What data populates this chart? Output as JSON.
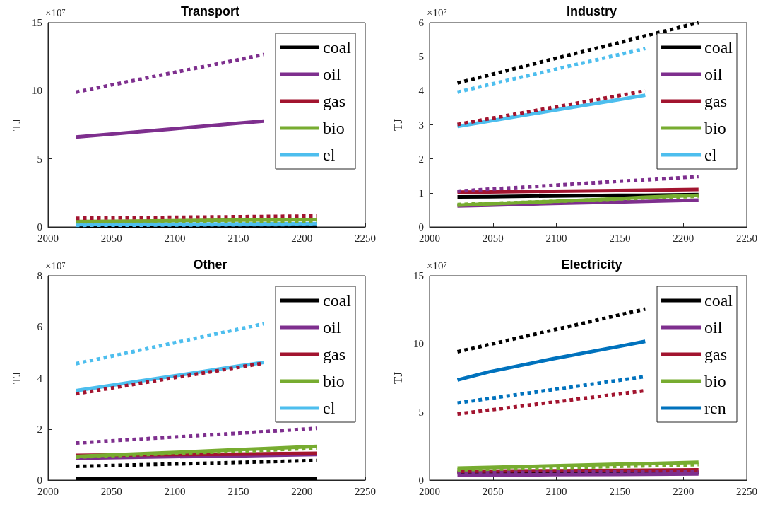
{
  "chart_data": [
    {
      "type": "line",
      "title": "Transport",
      "ylabel": "TJ",
      "annotations": [
        "×10⁷"
      ],
      "x": [
        2022,
        2047,
        2097,
        2148,
        2170,
        2212
      ],
      "xlim": [
        2000,
        2250
      ],
      "xticks": [
        2000,
        2050,
        2100,
        2150,
        2200,
        2250
      ],
      "ylim": [
        0,
        15
      ],
      "yticks": [
        0,
        5,
        10,
        15
      ],
      "legend": "top right",
      "grid": false,
      "marker": "none",
      "series": [
        {
          "name": "coal",
          "color": "#000000",
          "line_style": "solid",
          "values": [
            0.02,
            0.02,
            0.02,
            0.02,
            0.02,
            0.02
          ]
        },
        {
          "name": "oil",
          "color": "#7e2f8e",
          "line_style": "solid",
          "values": [
            6.6,
            6.8,
            7.19,
            7.6,
            7.77,
            null
          ]
        },
        {
          "name": "gas",
          "color": "#a2142f",
          "line_style": "solid",
          "values": [
            null,
            null,
            null,
            null,
            null,
            null
          ]
        },
        {
          "name": "bio",
          "color": "#77ac30",
          "line_style": "solid",
          "values": [
            0.4,
            0.42,
            0.46,
            0.5,
            0.52,
            0.55
          ]
        },
        {
          "name": "el",
          "color": "#4dbeee",
          "line_style": "solid",
          "values": [
            0.17,
            0.18,
            0.2,
            0.22,
            0.23,
            0.25
          ]
        },
        {
          "color": "#7e2f8e",
          "line_style": "dotted",
          "values": [
            9.9,
            10.37,
            11.3,
            12.24,
            12.66,
            null
          ]
        },
        {
          "color": "#a2142f",
          "line_style": "dotted",
          "values": [
            0.64,
            0.66,
            0.71,
            0.75,
            0.77,
            0.81
          ]
        },
        {
          "color": "#77ac30",
          "line_style": "dotted",
          "values": [
            0.35,
            0.36,
            0.39,
            0.42,
            0.43,
            0.45
          ]
        },
        {
          "color": "#4dbeee",
          "line_style": "dotted",
          "values": [
            0.12,
            0.13,
            0.14,
            0.16,
            0.17,
            0.18
          ]
        }
      ]
    },
    {
      "type": "line",
      "title": "Industry",
      "ylabel": "TJ",
      "annotations": [
        "×10⁷"
      ],
      "x": [
        2022,
        2047,
        2097,
        2148,
        2170,
        2212
      ],
      "xlim": [
        2000,
        2250
      ],
      "xticks": [
        2000,
        2050,
        2100,
        2150,
        2200,
        2250
      ],
      "ylim": [
        0,
        6
      ],
      "yticks": [
        0,
        1,
        2,
        3,
        4,
        5,
        6
      ],
      "legend": "top right",
      "grid": false,
      "marker": "none",
      "series": [
        {
          "name": "coal",
          "color": "#000000",
          "line_style": "solid",
          "values": [
            0.88,
            0.89,
            0.91,
            0.93,
            0.93,
            0.95
          ]
        },
        {
          "name": "oil",
          "color": "#7e2f8e",
          "line_style": "solid",
          "values": [
            0.62,
            0.64,
            0.69,
            0.73,
            0.75,
            0.79
          ]
        },
        {
          "name": "gas",
          "color": "#a2142f",
          "line_style": "solid",
          "values": [
            1.02,
            1.03,
            1.05,
            1.07,
            1.08,
            1.1
          ]
        },
        {
          "name": "bio",
          "color": "#77ac30",
          "line_style": "solid",
          "values": [
            0.64,
            0.68,
            0.75,
            0.83,
            0.87,
            0.93
          ]
        },
        {
          "name": "el",
          "color": "#4dbeee",
          "line_style": "solid",
          "values": [
            2.95,
            3.11,
            3.42,
            3.73,
            3.87,
            null
          ]
        },
        {
          "color": "#000000",
          "line_style": "dotted",
          "values": [
            4.23,
            4.46,
            4.93,
            5.4,
            5.61,
            6.0
          ]
        },
        {
          "color": "#7e2f8e",
          "line_style": "dotted",
          "values": [
            1.05,
            1.11,
            1.22,
            1.34,
            1.38,
            1.48
          ]
        },
        {
          "color": "#a2142f",
          "line_style": "dotted",
          "values": [
            3.01,
            3.18,
            3.51,
            3.85,
            4.0,
            null
          ]
        },
        {
          "color": "#77ac30",
          "line_style": "dotted",
          "values": [
            0.66,
            0.69,
            0.75,
            0.82,
            0.85,
            0.9
          ]
        },
        {
          "color": "#4dbeee",
          "line_style": "dotted",
          "values": [
            3.96,
            4.18,
            4.61,
            5.05,
            5.24,
            null
          ]
        }
      ]
    },
    {
      "type": "line",
      "title": "Other",
      "ylabel": "TJ",
      "annotations": [
        "×10⁷"
      ],
      "x": [
        2022,
        2047,
        2097,
        2148,
        2170,
        2212
      ],
      "xlim": [
        2000,
        2250
      ],
      "xticks": [
        2000,
        2050,
        2100,
        2150,
        2200,
        2250
      ],
      "ylim": [
        0,
        8
      ],
      "yticks": [
        0,
        2,
        4,
        6,
        8
      ],
      "legend": "top right",
      "grid": false,
      "marker": "none",
      "series": [
        {
          "name": "coal",
          "color": "#000000",
          "line_style": "solid",
          "values": [
            0.07,
            0.07,
            0.07,
            0.07,
            0.07,
            0.07
          ]
        },
        {
          "name": "oil",
          "color": "#7e2f8e",
          "line_style": "solid",
          "values": [
            0.86,
            0.88,
            0.92,
            0.95,
            0.97,
            1.0
          ]
        },
        {
          "name": "gas",
          "color": "#a2142f",
          "line_style": "solid",
          "values": [
            0.97,
            0.98,
            1.0,
            1.02,
            1.03,
            1.05
          ]
        },
        {
          "name": "bio",
          "color": "#77ac30",
          "line_style": "solid",
          "values": [
            0.93,
            0.98,
            1.08,
            1.19,
            1.23,
            1.32
          ]
        },
        {
          "name": "el",
          "color": "#4dbeee",
          "line_style": "solid",
          "values": [
            3.5,
            3.69,
            4.06,
            4.45,
            4.61,
            null
          ]
        },
        {
          "color": "#000000",
          "line_style": "dotted",
          "values": [
            0.54,
            0.57,
            0.63,
            0.69,
            0.72,
            0.77
          ]
        },
        {
          "color": "#7e2f8e",
          "line_style": "dotted",
          "values": [
            1.45,
            1.53,
            1.68,
            1.83,
            1.9,
            2.03
          ]
        },
        {
          "color": "#a2142f",
          "line_style": "dotted",
          "values": [
            3.38,
            3.58,
            3.99,
            4.4,
            4.58,
            null
          ]
        },
        {
          "color": "#77ac30",
          "line_style": "dotted",
          "values": [
            0.9,
            0.95,
            1.04,
            1.13,
            1.17,
            1.25
          ]
        },
        {
          "color": "#4dbeee",
          "line_style": "dotted",
          "values": [
            4.56,
            4.82,
            5.35,
            5.89,
            6.12,
            null
          ]
        }
      ]
    },
    {
      "type": "line",
      "title": "Electricity",
      "ylabel": "TJ",
      "annotations": [
        "×10⁷"
      ],
      "x": [
        2022,
        2047,
        2097,
        2148,
        2170,
        2212
      ],
      "xlim": [
        2000,
        2250
      ],
      "xticks": [
        2000,
        2050,
        2100,
        2150,
        2200,
        2250
      ],
      "ylim": [
        0,
        15
      ],
      "yticks": [
        0,
        5,
        10,
        15
      ],
      "legend": "top right",
      "grid": false,
      "marker": "none",
      "series": [
        {
          "name": "coal",
          "color": "#000000",
          "line_style": "solid",
          "values": [
            0.53,
            0.53,
            0.53,
            0.53,
            0.53,
            0.53
          ]
        },
        {
          "name": "oil",
          "color": "#7e2f8e",
          "line_style": "solid",
          "values": [
            0.36,
            0.37,
            0.4,
            0.42,
            0.43,
            0.45
          ]
        },
        {
          "name": "gas",
          "color": "#a2142f",
          "line_style": "solid",
          "values": [
            0.65,
            0.66,
            0.69,
            0.72,
            0.73,
            0.75
          ]
        },
        {
          "name": "bio",
          "color": "#77ac30",
          "line_style": "solid",
          "values": [
            0.88,
            0.94,
            1.05,
            1.17,
            1.21,
            1.31
          ]
        },
        {
          "name": "ren",
          "color": "#0072bd",
          "line_style": "solid",
          "values": [
            7.35,
            7.95,
            8.9,
            9.79,
            10.19,
            null
          ]
        },
        {
          "color": "#000000",
          "line_style": "dotted",
          "values": [
            9.42,
            9.95,
            11.01,
            12.09,
            12.56,
            null
          ]
        },
        {
          "color": "#7e2f8e",
          "line_style": "dotted",
          "values": [
            0.55,
            0.56,
            0.59,
            0.62,
            0.63,
            0.65
          ]
        },
        {
          "color": "#a2142f",
          "line_style": "dotted",
          "values": [
            4.85,
            5.14,
            5.72,
            6.31,
            6.57,
            null
          ]
        },
        {
          "color": "#77ac30",
          "line_style": "dotted",
          "values": [
            0.75,
            0.8,
            0.9,
            1.01,
            1.05,
            1.14
          ]
        },
        {
          "color": "#0072bd",
          "line_style": "dotted",
          "values": [
            5.66,
            5.99,
            6.64,
            7.31,
            7.6,
            null
          ]
        }
      ]
    }
  ]
}
